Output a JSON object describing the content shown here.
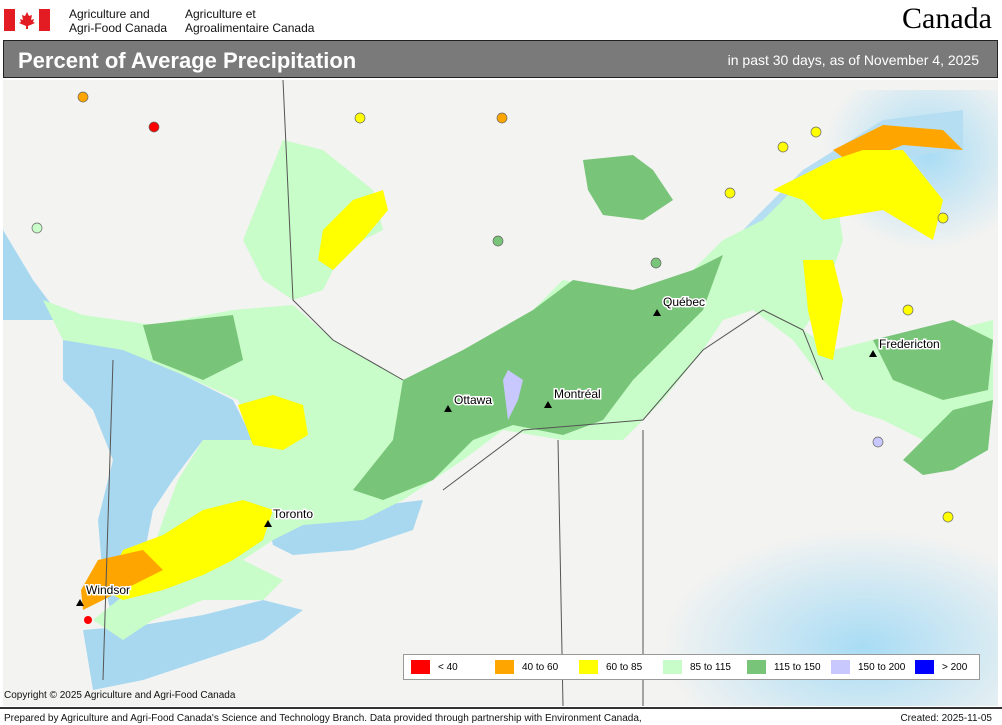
{
  "header": {
    "dept_en": [
      "Agriculture and",
      "Agri-Food Canada"
    ],
    "dept_fr": [
      "Agriculture et",
      "Agroalimentaire Canada"
    ],
    "wordmark": "Canada"
  },
  "titlebar": {
    "title": "Percent of Average Precipitation",
    "subtitle": "in past 30 days, as of November 4, 2025"
  },
  "map": {
    "cities": [
      "Windsor",
      "Toronto",
      "Ottawa",
      "Montréal",
      "Québec",
      "Fredericton"
    ]
  },
  "legend": [
    {
      "label": "< 40",
      "color": "#ff0000"
    },
    {
      "label": "40 to 60",
      "color": "#ffa500"
    },
    {
      "label": "60 to 85",
      "color": "#ffff00"
    },
    {
      "label": "85 to 115",
      "color": "#c8fcc8"
    },
    {
      "label": "115 to 150",
      "color": "#78c478"
    },
    {
      "label": "150 to 200",
      "color": "#c8c8ff"
    },
    {
      "label": "> 200",
      "color": "#0000ff"
    }
  ],
  "footer": {
    "copyright": "Copyright © 2025 Agriculture and Agri-Food Canada",
    "prepared": "Prepared by Agriculture and Agri-Food Canada's Science and Technology Branch. Data provided through partnership with Environment Canada,",
    "created": "Created: 2025-11-05"
  }
}
